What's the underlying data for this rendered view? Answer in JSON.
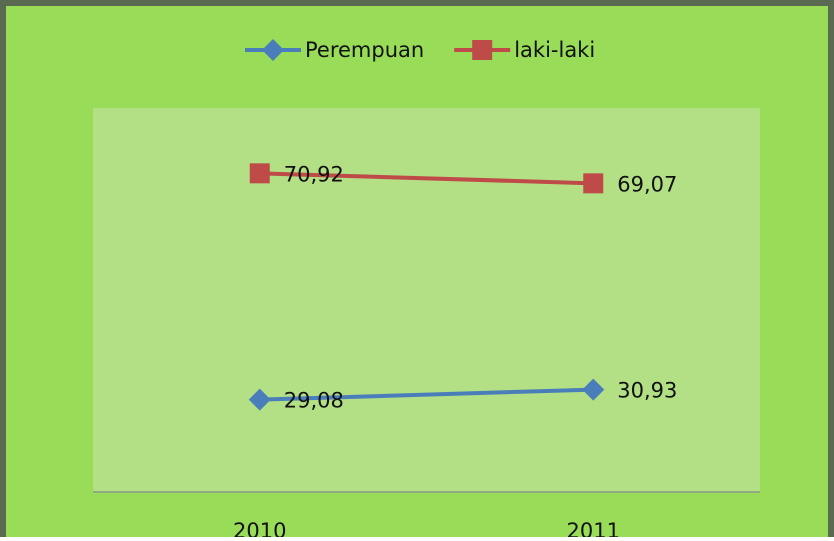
{
  "chart_data": {
    "type": "line",
    "categories": [
      "2010",
      "2011"
    ],
    "series": [
      {
        "name": "Perempuan",
        "color": "#4a7ebb",
        "values": [
          29.08,
          30.93
        ],
        "value_labels": [
          "29,08",
          "30,93"
        ]
      },
      {
        "name": "laki-laki",
        "color": "#be4b48",
        "values": [
          70.92,
          69.07
        ],
        "value_labels": [
          "70,92",
          "69,07"
        ]
      }
    ],
    "ylim": [
      12,
      83
    ],
    "legend": "top"
  }
}
